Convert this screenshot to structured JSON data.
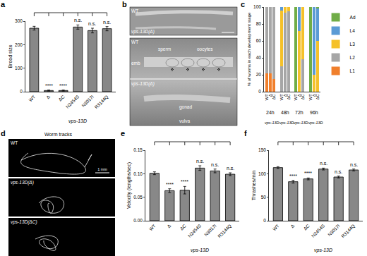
{
  "chart_data": [
    {
      "panel": "a",
      "type": "bar",
      "y_label": "Brood size",
      "categories": [
        "WT",
        "Δ",
        "ΔC",
        "N2454S",
        "N3017I",
        "R3144Q"
      ],
      "group_label": "vps-13D",
      "values": [
        270,
        5,
        5,
        275,
        260,
        268
      ],
      "errors": [
        8,
        2,
        2,
        9,
        10,
        9
      ],
      "significance": [
        null,
        "****",
        "****",
        "n.s.",
        "n.s.",
        "n.s."
      ],
      "color": "#888888",
      "ylim": [
        0,
        300
      ],
      "yticks": [
        0,
        100,
        200,
        300
      ]
    },
    {
      "panel": "c",
      "type": "bar",
      "stacked": true,
      "y_label": "% of worms in each development stage",
      "categories": [
        "WT",
        "Δ",
        "ΔC",
        "WT",
        "Δ",
        "ΔC",
        "WT",
        "Δ",
        "ΔC",
        "WT",
        "Δ",
        "ΔC"
      ],
      "time_labels": [
        "24h",
        "48h",
        "72h",
        "96h"
      ],
      "group_label": "vps-13D",
      "legend": "right",
      "ylim": [
        0,
        100
      ],
      "yticks": [
        0,
        20,
        40,
        60,
        80,
        100
      ],
      "series": [
        {
          "name": "L1",
          "color": "#f07f2c",
          "values": [
            22,
            22,
            15,
            0,
            0,
            0,
            0,
            0,
            0,
            0,
            0,
            0
          ]
        },
        {
          "name": "L2",
          "color": "#a6a6a6",
          "values": [
            78,
            78,
            85,
            30,
            93,
            95,
            0,
            0,
            38,
            0,
            0,
            0
          ]
        },
        {
          "name": "L3",
          "color": "#f5c12a",
          "values": [
            0,
            0,
            0,
            66,
            7,
            5,
            0,
            72,
            62,
            0,
            20,
            60
          ]
        },
        {
          "name": "L4",
          "color": "#5b9bd5",
          "values": [
            0,
            0,
            0,
            4,
            0,
            0,
            0,
            28,
            0,
            0,
            80,
            38
          ]
        },
        {
          "name": "Ad",
          "color": "#70ad47",
          "values": [
            0,
            0,
            0,
            0,
            0,
            0,
            100,
            0,
            0,
            100,
            0,
            2
          ]
        }
      ]
    },
    {
      "panel": "e",
      "type": "bar",
      "y_label": "Velocity (lengths/sec)",
      "categories": [
        "WT",
        "Δ",
        "ΔC",
        "N2454S",
        "N3017I",
        "R3144Q"
      ],
      "group_label": "vps-13D",
      "values": [
        0.101,
        0.064,
        0.065,
        0.112,
        0.106,
        0.099
      ],
      "errors": [
        0.003,
        0.004,
        0.008,
        0.005,
        0.004,
        0.003
      ],
      "significance": [
        null,
        "****",
        "****",
        "n.s.",
        "n.s.",
        "n.s."
      ],
      "color": "#888888",
      "ylim": [
        0,
        0.15
      ],
      "yticks": [
        {
          "value": 0,
          "label": "0.00"
        },
        {
          "value": 0.05,
          "label": "0.05"
        },
        {
          "value": 0.1,
          "label": "0.10"
        },
        {
          "value": 0.15,
          "label": "0.15"
        }
      ]
    },
    {
      "panel": "f",
      "type": "bar",
      "y_label": "Thrashes/min",
      "categories": [
        "WT",
        "Δ",
        "ΔC",
        "N2454S",
        "N3017I",
        "R3144Q"
      ],
      "group_label": "vps-13D",
      "values": [
        113,
        83,
        89,
        110,
        93,
        108
      ],
      "errors": [
        2,
        3,
        2,
        2,
        2,
        2
      ],
      "significance": [
        null,
        "****",
        "****",
        "n.s.",
        "n.s.",
        "n.s."
      ],
      "color": "#888888",
      "ylim": [
        0,
        150
      ],
      "yticks": [
        0,
        50,
        100,
        150
      ]
    }
  ],
  "images": [
    {
      "panel": "b",
      "top_image": {
        "labels": [
          "WT",
          "vps-13D(Δ)"
        ]
      },
      "bottom_image": {
        "wt": {
          "label": "WT",
          "parts": [
            "sperm",
            "oocytes",
            "emb"
          ]
        },
        "mutant": {
          "label": "vps-13D(Δ)",
          "parts": [
            "gonad",
            "vulva"
          ]
        }
      }
    },
    {
      "panel": "d",
      "title": "Worm tracks",
      "labels": [
        "WT",
        "vps-13D(Δ)",
        "vps-13D(ΔC)"
      ],
      "scale_bar": "1 mm"
    }
  ]
}
